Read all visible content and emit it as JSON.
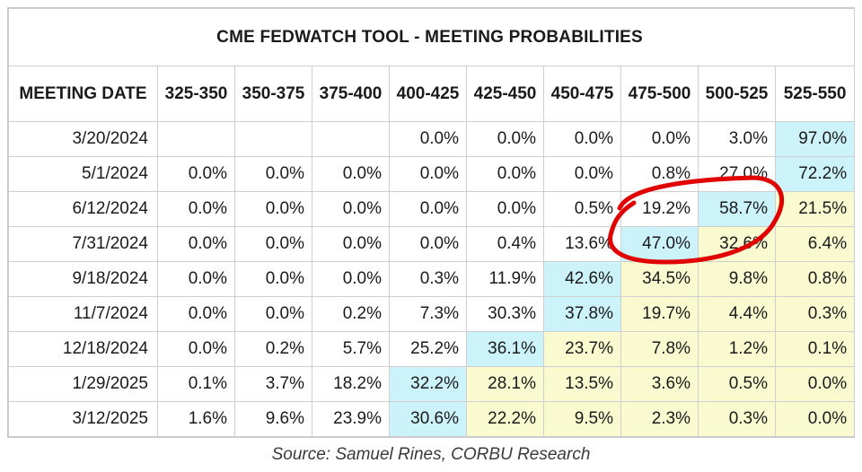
{
  "chart_data": {
    "type": "table",
    "title": "CME FEDWATCH TOOL - MEETING PROBABILITIES",
    "row_header_label": "MEETING DATE",
    "columns": [
      "325-350",
      "350-375",
      "375-400",
      "400-425",
      "425-450",
      "450-475",
      "475-500",
      "500-525",
      "525-550"
    ],
    "rows": [
      {
        "date": "3/20/2024",
        "values": [
          "",
          "",
          "",
          "0.0%",
          "0.0%",
          "0.0%",
          "0.0%",
          "3.0%",
          "97.0%"
        ],
        "peak_col": 8
      },
      {
        "date": "5/1/2024",
        "values": [
          "0.0%",
          "0.0%",
          "0.0%",
          "0.0%",
          "0.0%",
          "0.0%",
          "0.8%",
          "27.0%",
          "72.2%"
        ],
        "peak_col": 8
      },
      {
        "date": "6/12/2024",
        "values": [
          "0.0%",
          "0.0%",
          "0.0%",
          "0.0%",
          "0.0%",
          "0.5%",
          "19.2%",
          "58.7%",
          "21.5%"
        ],
        "peak_col": 7
      },
      {
        "date": "7/31/2024",
        "values": [
          "0.0%",
          "0.0%",
          "0.0%",
          "0.0%",
          "0.4%",
          "13.6%",
          "47.0%",
          "32.6%",
          "6.4%"
        ],
        "peak_col": 6
      },
      {
        "date": "9/18/2024",
        "values": [
          "0.0%",
          "0.0%",
          "0.0%",
          "0.3%",
          "11.9%",
          "42.6%",
          "34.5%",
          "9.8%",
          "0.8%"
        ],
        "peak_col": 5
      },
      {
        "date": "11/7/2024",
        "values": [
          "0.0%",
          "0.0%",
          "0.2%",
          "7.3%",
          "30.3%",
          "37.8%",
          "19.7%",
          "4.4%",
          "0.3%"
        ],
        "peak_col": 5
      },
      {
        "date": "12/18/2024",
        "values": [
          "0.0%",
          "0.2%",
          "5.7%",
          "25.2%",
          "36.1%",
          "23.7%",
          "7.8%",
          "1.2%",
          "0.1%"
        ],
        "peak_col": 4
      },
      {
        "date": "1/29/2025",
        "values": [
          "0.1%",
          "3.7%",
          "18.2%",
          "32.2%",
          "28.1%",
          "13.5%",
          "3.6%",
          "0.5%",
          "0.0%"
        ],
        "peak_col": 3
      },
      {
        "date": "3/12/2025",
        "values": [
          "1.6%",
          "9.6%",
          "23.9%",
          "30.6%",
          "22.2%",
          "9.5%",
          "2.3%",
          "0.3%",
          "0.0%"
        ],
        "peak_col": 3
      }
    ],
    "colors": {
      "peak": "#ccf2fa",
      "above_peak": "#fafad0",
      "circle": "#e00000"
    }
  },
  "source": "Source: Samuel Rines, CORBU Research"
}
